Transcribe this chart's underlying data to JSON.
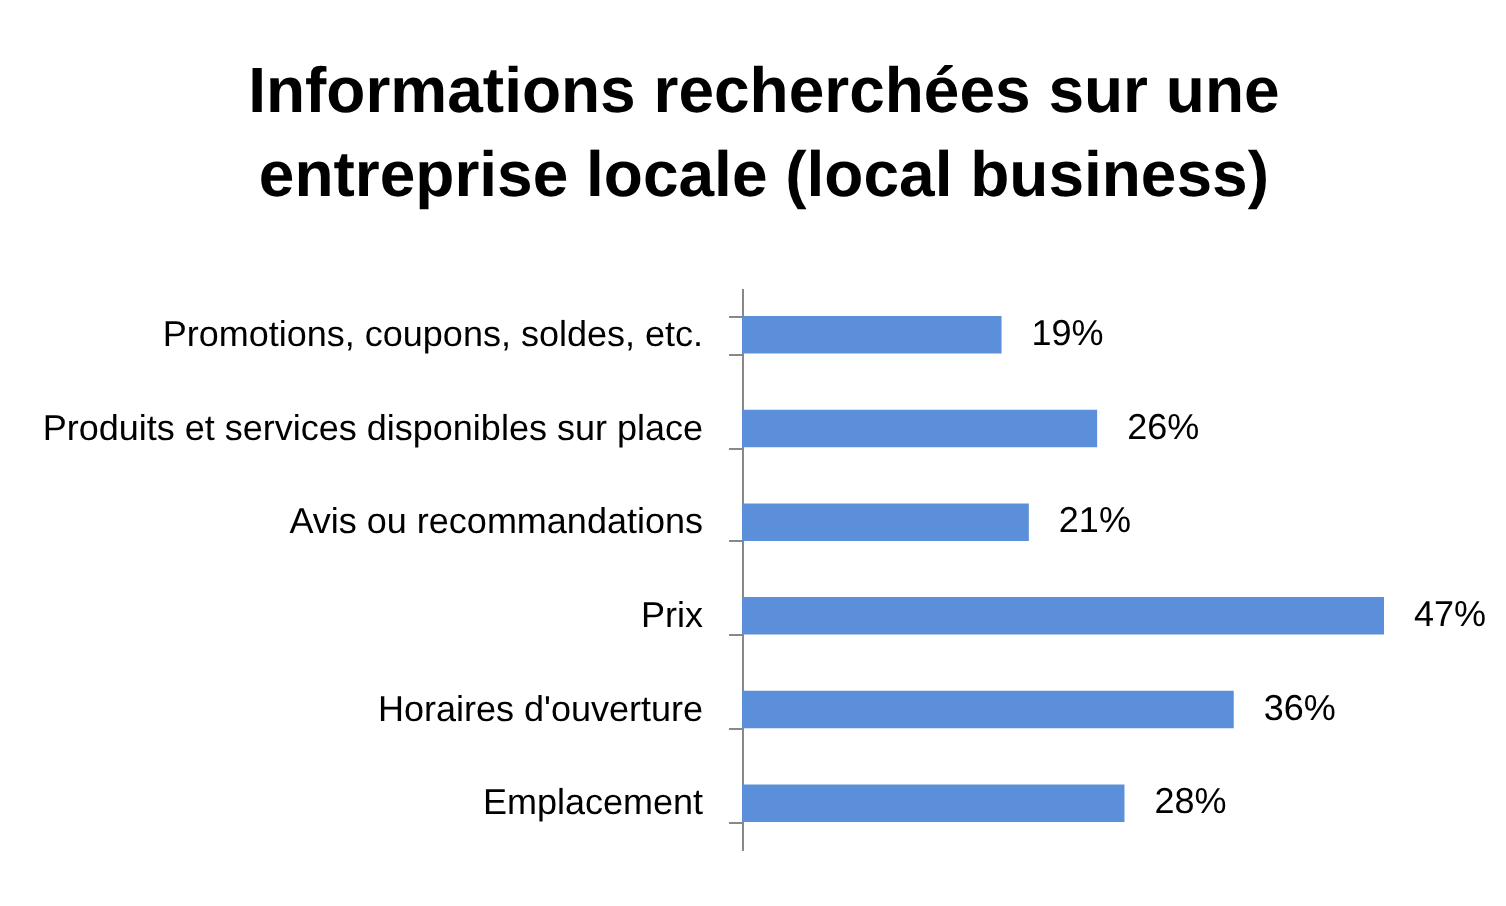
{
  "chart_data": {
    "type": "bar",
    "orientation": "horizontal",
    "title": "Informations recherchées sur une entreprise locale (local business)",
    "categories": [
      "Promotions, coupons, soldes, etc.",
      "Produits et services disponibles sur place",
      "Avis ou recommandations",
      "Prix",
      "Horaires d'ouverture",
      "Emplacement"
    ],
    "values": [
      19,
      26,
      21,
      47,
      36,
      28
    ],
    "value_labels": [
      "19%",
      "26%",
      "21%",
      "47%",
      "36%",
      "28%"
    ],
    "color": "#5b8fd9",
    "tick_labels": "y"
  }
}
